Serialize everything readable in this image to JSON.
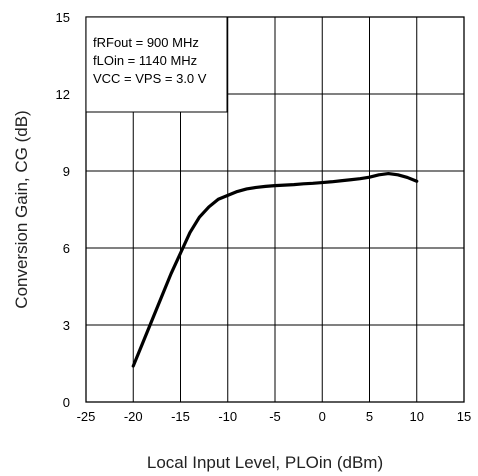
{
  "chart_data": {
    "type": "line",
    "xlabel": "Local Input Level, PLOin (dBm)",
    "ylabel": "Conversion Gain, CG (dB)",
    "xlim": [
      -25,
      15
    ],
    "ylim": [
      0,
      15
    ],
    "x_ticks": [
      "-25",
      "-20",
      "-15",
      "-10",
      "-5",
      "0",
      "5",
      "10",
      "15"
    ],
    "y_ticks": [
      "0",
      "3",
      "6",
      "9",
      "12",
      "15"
    ],
    "grid": true,
    "annotations": [
      "fRFout = 900 MHz",
      "fLOin = 1140 MHz",
      "VCC = VPS = 3.0 V"
    ],
    "series": [
      {
        "x": [
          -20,
          -19,
          -18,
          -17,
          -16,
          -15,
          -14,
          -13,
          -12,
          -11,
          -10,
          -9,
          -8,
          -7,
          -6,
          -5,
          -4,
          -3,
          -2,
          -1,
          0,
          1,
          2,
          3,
          4,
          5,
          6,
          7,
          8,
          9,
          10
        ],
        "y": [
          1.4,
          2.3,
          3.2,
          4.1,
          5.0,
          5.8,
          6.6,
          7.2,
          7.6,
          7.9,
          8.05,
          8.2,
          8.3,
          8.36,
          8.4,
          8.43,
          8.45,
          8.47,
          8.5,
          8.52,
          8.55,
          8.58,
          8.62,
          8.66,
          8.7,
          8.76,
          8.85,
          8.9,
          8.85,
          8.75,
          8.6
        ]
      }
    ]
  }
}
